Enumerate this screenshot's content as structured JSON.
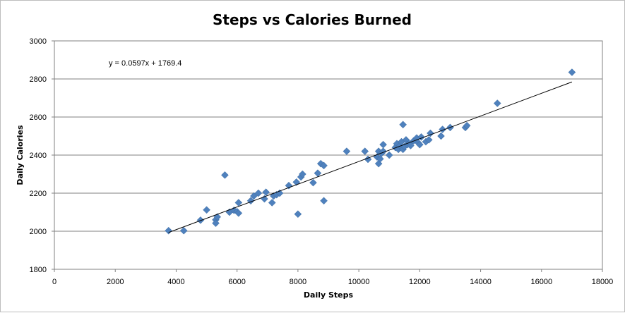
{
  "chart_data": {
    "type": "scatter",
    "title": "Steps vs Calories Burned",
    "xlabel": "Daily Steps",
    "ylabel": "Daily Calories",
    "xlim": [
      0,
      18000
    ],
    "ylim": [
      1800,
      3000
    ],
    "xticks": [
      0,
      2000,
      4000,
      6000,
      8000,
      10000,
      12000,
      14000,
      16000,
      18000
    ],
    "yticks": [
      1800,
      2000,
      2200,
      2400,
      2600,
      2800,
      3000
    ],
    "grid": "horizontal",
    "marker_color": "#4F81BD",
    "marker": "diamond",
    "trendline": {
      "equation": "y = 0.0597x + 1769.4",
      "slope": 0.0597,
      "intercept": 1769.4,
      "x_range": [
        3750,
        17000
      ],
      "color": "#000000"
    },
    "points": [
      [
        3750,
        2003
      ],
      [
        4250,
        2003
      ],
      [
        4800,
        2058
      ],
      [
        5000,
        2112
      ],
      [
        5300,
        2060
      ],
      [
        5300,
        2042
      ],
      [
        5350,
        2075
      ],
      [
        5600,
        2295
      ],
      [
        5750,
        2100
      ],
      [
        5900,
        2110
      ],
      [
        6000,
        2103
      ],
      [
        6050,
        2095
      ],
      [
        6050,
        2150
      ],
      [
        6450,
        2160
      ],
      [
        6550,
        2185
      ],
      [
        6700,
        2200
      ],
      [
        6900,
        2170
      ],
      [
        6950,
        2205
      ],
      [
        7150,
        2150
      ],
      [
        7200,
        2185
      ],
      [
        7300,
        2192
      ],
      [
        7400,
        2200
      ],
      [
        7700,
        2240
      ],
      [
        7950,
        2258
      ],
      [
        8000,
        2090
      ],
      [
        8100,
        2285
      ],
      [
        8150,
        2300
      ],
      [
        8500,
        2255
      ],
      [
        8650,
        2305
      ],
      [
        8750,
        2355
      ],
      [
        8850,
        2345
      ],
      [
        8850,
        2160
      ],
      [
        9600,
        2420
      ],
      [
        10200,
        2420
      ],
      [
        10300,
        2378
      ],
      [
        10600,
        2390
      ],
      [
        10650,
        2420
      ],
      [
        10650,
        2355
      ],
      [
        10700,
        2380
      ],
      [
        10750,
        2410
      ],
      [
        10800,
        2455
      ],
      [
        10800,
        2420
      ],
      [
        11000,
        2400
      ],
      [
        11200,
        2440
      ],
      [
        11250,
        2460
      ],
      [
        11300,
        2430
      ],
      [
        11350,
        2450
      ],
      [
        11400,
        2470
      ],
      [
        11450,
        2560
      ],
      [
        11450,
        2430
      ],
      [
        11500,
        2445
      ],
      [
        11550,
        2480
      ],
      [
        11600,
        2455
      ],
      [
        11650,
        2460
      ],
      [
        11700,
        2450
      ],
      [
        11800,
        2475
      ],
      [
        11900,
        2490
      ],
      [
        11950,
        2465
      ],
      [
        12000,
        2455
      ],
      [
        12050,
        2495
      ],
      [
        12200,
        2470
      ],
      [
        12300,
        2480
      ],
      [
        12350,
        2515
      ],
      [
        12700,
        2500
      ],
      [
        12750,
        2535
      ],
      [
        13000,
        2545
      ],
      [
        13500,
        2545
      ],
      [
        13550,
        2555
      ],
      [
        14550,
        2672
      ],
      [
        17000,
        2835
      ]
    ]
  }
}
